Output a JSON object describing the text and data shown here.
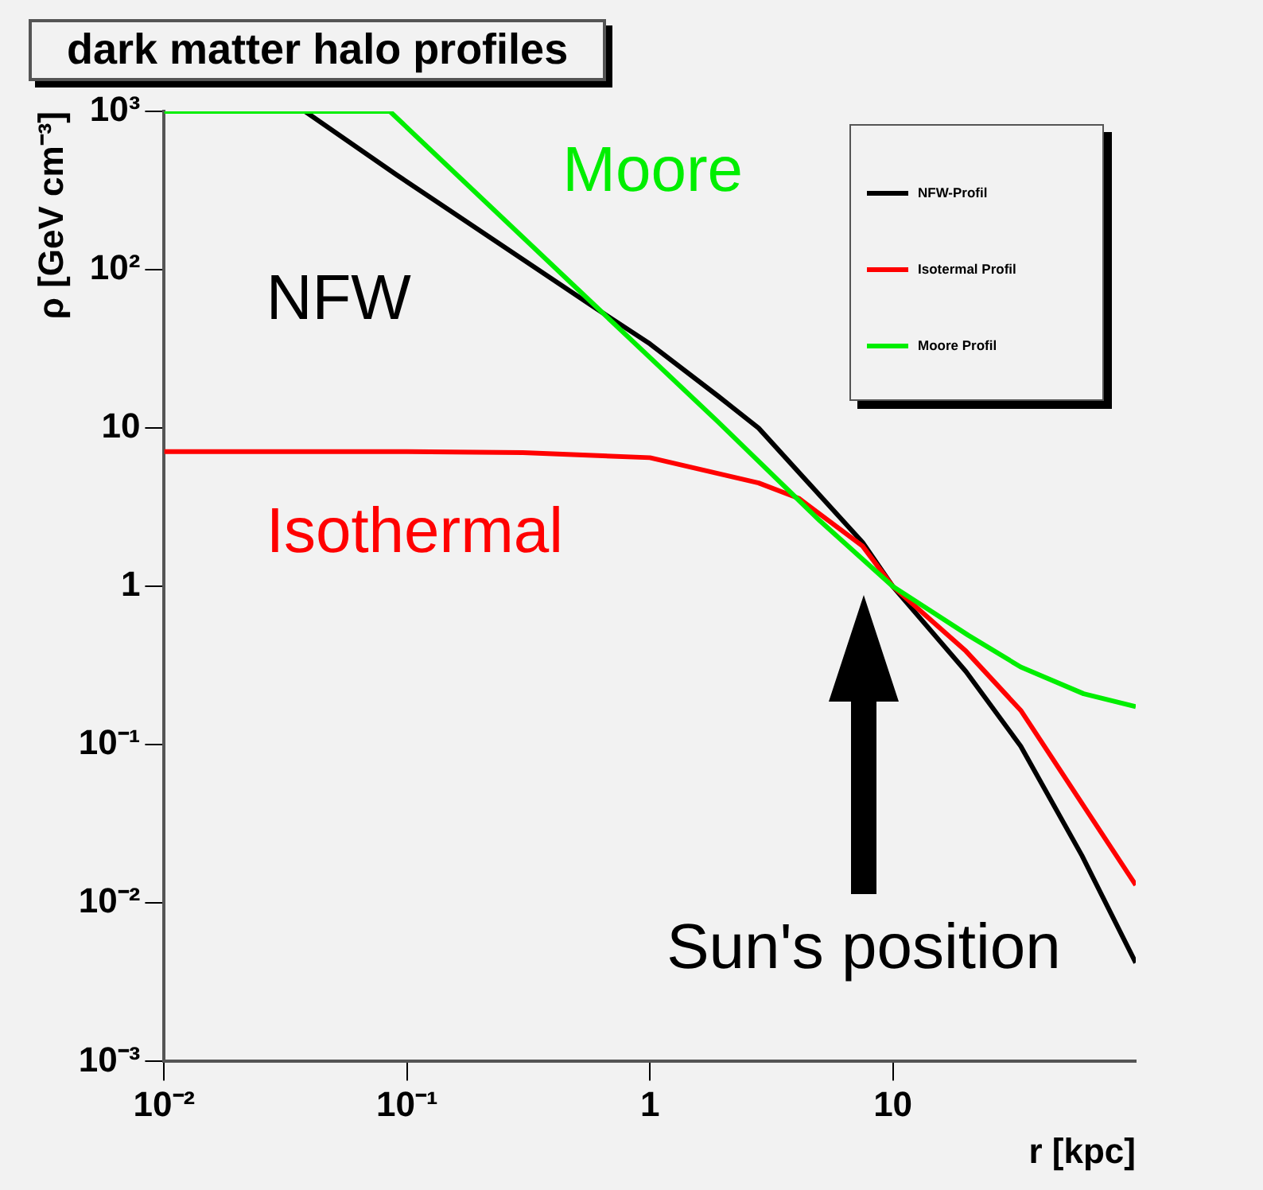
{
  "chart_data": {
    "type": "line",
    "title": "dark matter halo profiles",
    "xlabel": "r [kpc]",
    "ylabel": "ρ [GeV cm⁻³]",
    "log": "xy",
    "grid": false,
    "legend": "top right",
    "marker": "none",
    "line_style": "solid",
    "xlim": [
      0.01,
      100
    ],
    "xticks": [
      {
        "value": 0.01,
        "label": "10⁻²"
      },
      {
        "value": 0.1,
        "label": "10⁻¹"
      },
      1,
      10
    ],
    "ylim": [
      0.001,
      1000
    ],
    "yticks": [
      {
        "value": 0.001,
        "label": "10⁻³"
      },
      {
        "value": 0.01,
        "label": "10⁻²"
      },
      {
        "value": 0.1,
        "label": "10⁻¹"
      },
      1,
      10,
      {
        "value": 100,
        "label": "10²"
      },
      {
        "value": 1000,
        "label": "10³"
      }
    ],
    "series": [
      {
        "name": "NFW-Profil",
        "color": "#000000",
        "x": [
          0.038,
          0.09,
          0.57,
          1,
          1.9,
          2.8,
          7.5,
          10,
          20,
          33.6,
          60,
          100
        ],
        "values": [
          1000,
          400,
          60,
          34,
          16,
          10,
          1.9,
          1,
          0.29,
          0.098,
          0.02,
          0.0042
        ]
      },
      {
        "name": "Isotermal Profil",
        "color": "#ff0000",
        "x": [
          0.01,
          0.1,
          0.3,
          1,
          2.8,
          4.1,
          7.5,
          10,
          20,
          33.6,
          100
        ],
        "values": [
          7.1,
          7.1,
          7,
          6.5,
          4.5,
          3.6,
          1.8,
          1,
          0.39,
          0.165,
          0.013
        ]
      },
      {
        "name": "Moore Profil",
        "color": "#00ee00",
        "x": [
          0.01,
          0.085,
          0.57,
          1.9,
          5,
          10,
          20.5,
          33.6,
          61,
          100
        ],
        "values": [
          1000,
          1000,
          63,
          11,
          2.6,
          1,
          0.49,
          0.31,
          0.21,
          0.174
        ]
      }
    ],
    "annotations": [
      "NFW",
      "Isothermal",
      "Moore",
      "Sun's position"
    ]
  }
}
